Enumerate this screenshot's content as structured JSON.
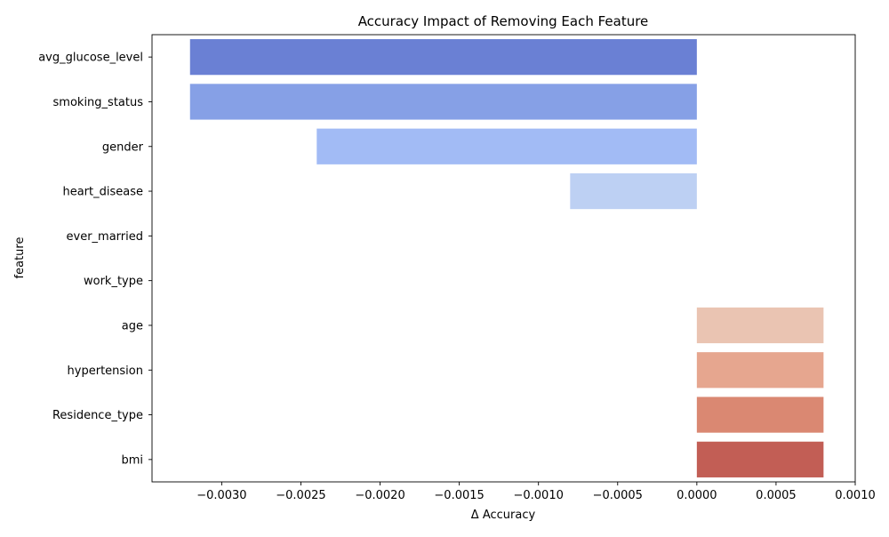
{
  "chart_data": {
    "type": "bar",
    "orientation": "horizontal",
    "title": "Accuracy Impact of Removing Each Feature",
    "xlabel": "Δ Accuracy",
    "ylabel": "feature",
    "xlim": [
      -0.00344,
      0.001
    ],
    "xticks": [
      -0.003,
      -0.0025,
      -0.002,
      -0.0015,
      -0.001,
      -0.0005,
      0.0,
      0.0005,
      0.001
    ],
    "xtick_labels": [
      "−0.0030",
      "−0.0025",
      "−0.0020",
      "−0.0015",
      "−0.0010",
      "−0.0005",
      "0.0000",
      "0.0005",
      "0.0010"
    ],
    "grid": false,
    "categories": [
      "avg_glucose_level",
      "smoking_status",
      "gender",
      "heart_disease",
      "ever_married",
      "work_type",
      "age",
      "hypertension",
      "Residence_type",
      "bmi"
    ],
    "values": [
      -0.0032,
      -0.0032,
      -0.0024,
      -0.0008,
      0.0,
      0.0,
      0.0008,
      0.0008,
      0.0008,
      0.0008
    ],
    "colors": [
      "#6a80d4",
      "#86a0e6",
      "#a2bbf5",
      "#bdd0f3",
      "#dcdcdc",
      "#efd2c5",
      "#eac4b2",
      "#e6a68f",
      "#da8872",
      "#c25e55"
    ]
  }
}
